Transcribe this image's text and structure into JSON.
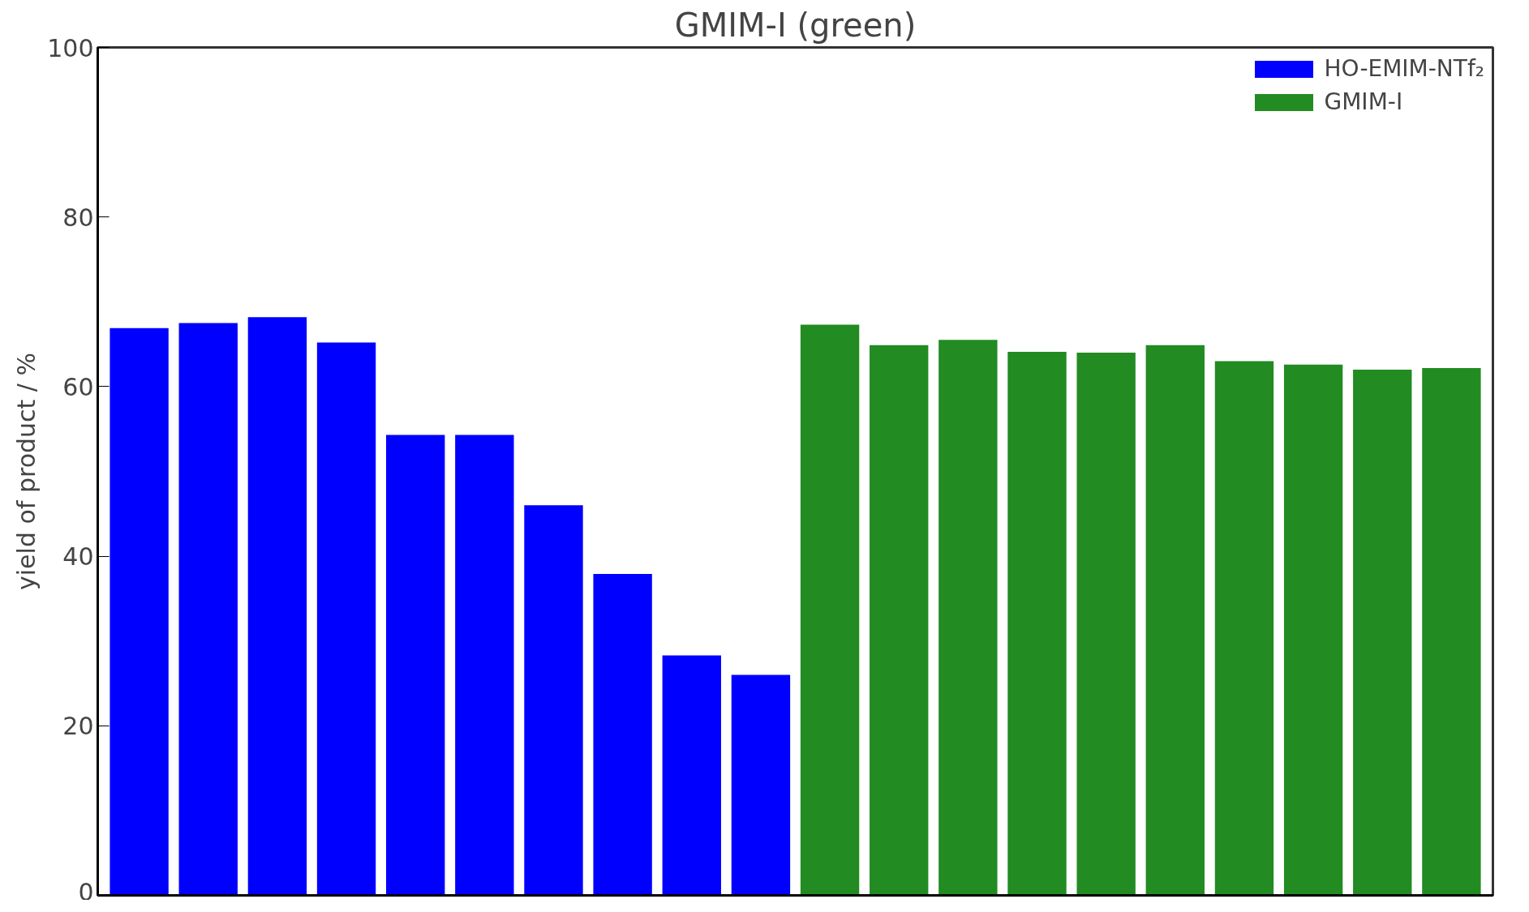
{
  "chart_data": {
    "type": "bar",
    "title": "GMIM-I (green)",
    "ylabel": "yield of product / %",
    "categories": [
      null,
      null,
      null,
      null,
      null,
      null,
      null,
      null,
      null,
      null,
      null,
      null,
      null,
      null,
      null,
      null,
      null,
      null,
      null,
      null
    ],
    "series": [
      {
        "name": "HO-EMIM-NTf₂",
        "color": "#0000ff",
        "values": [
          66.9,
          67.5,
          68.2,
          65.2,
          54.3,
          54.3,
          46.0,
          37.9,
          28.3,
          26.0,
          null,
          null,
          null,
          null,
          null,
          null,
          null,
          null,
          null,
          null
        ]
      },
      {
        "name": "GMIM-I",
        "color": "#228b22",
        "values": [
          null,
          null,
          null,
          null,
          null,
          null,
          null,
          null,
          null,
          null,
          67.3,
          64.9,
          65.5,
          64.1,
          64.0,
          64.9,
          63.0,
          62.6,
          62.0,
          62.2
        ]
      }
    ],
    "ylim": [
      0,
      100
    ],
    "yticks": [
      0,
      20,
      40,
      60,
      80,
      100
    ],
    "grid": false,
    "legend": "top right",
    "tick_labels": "y"
  }
}
